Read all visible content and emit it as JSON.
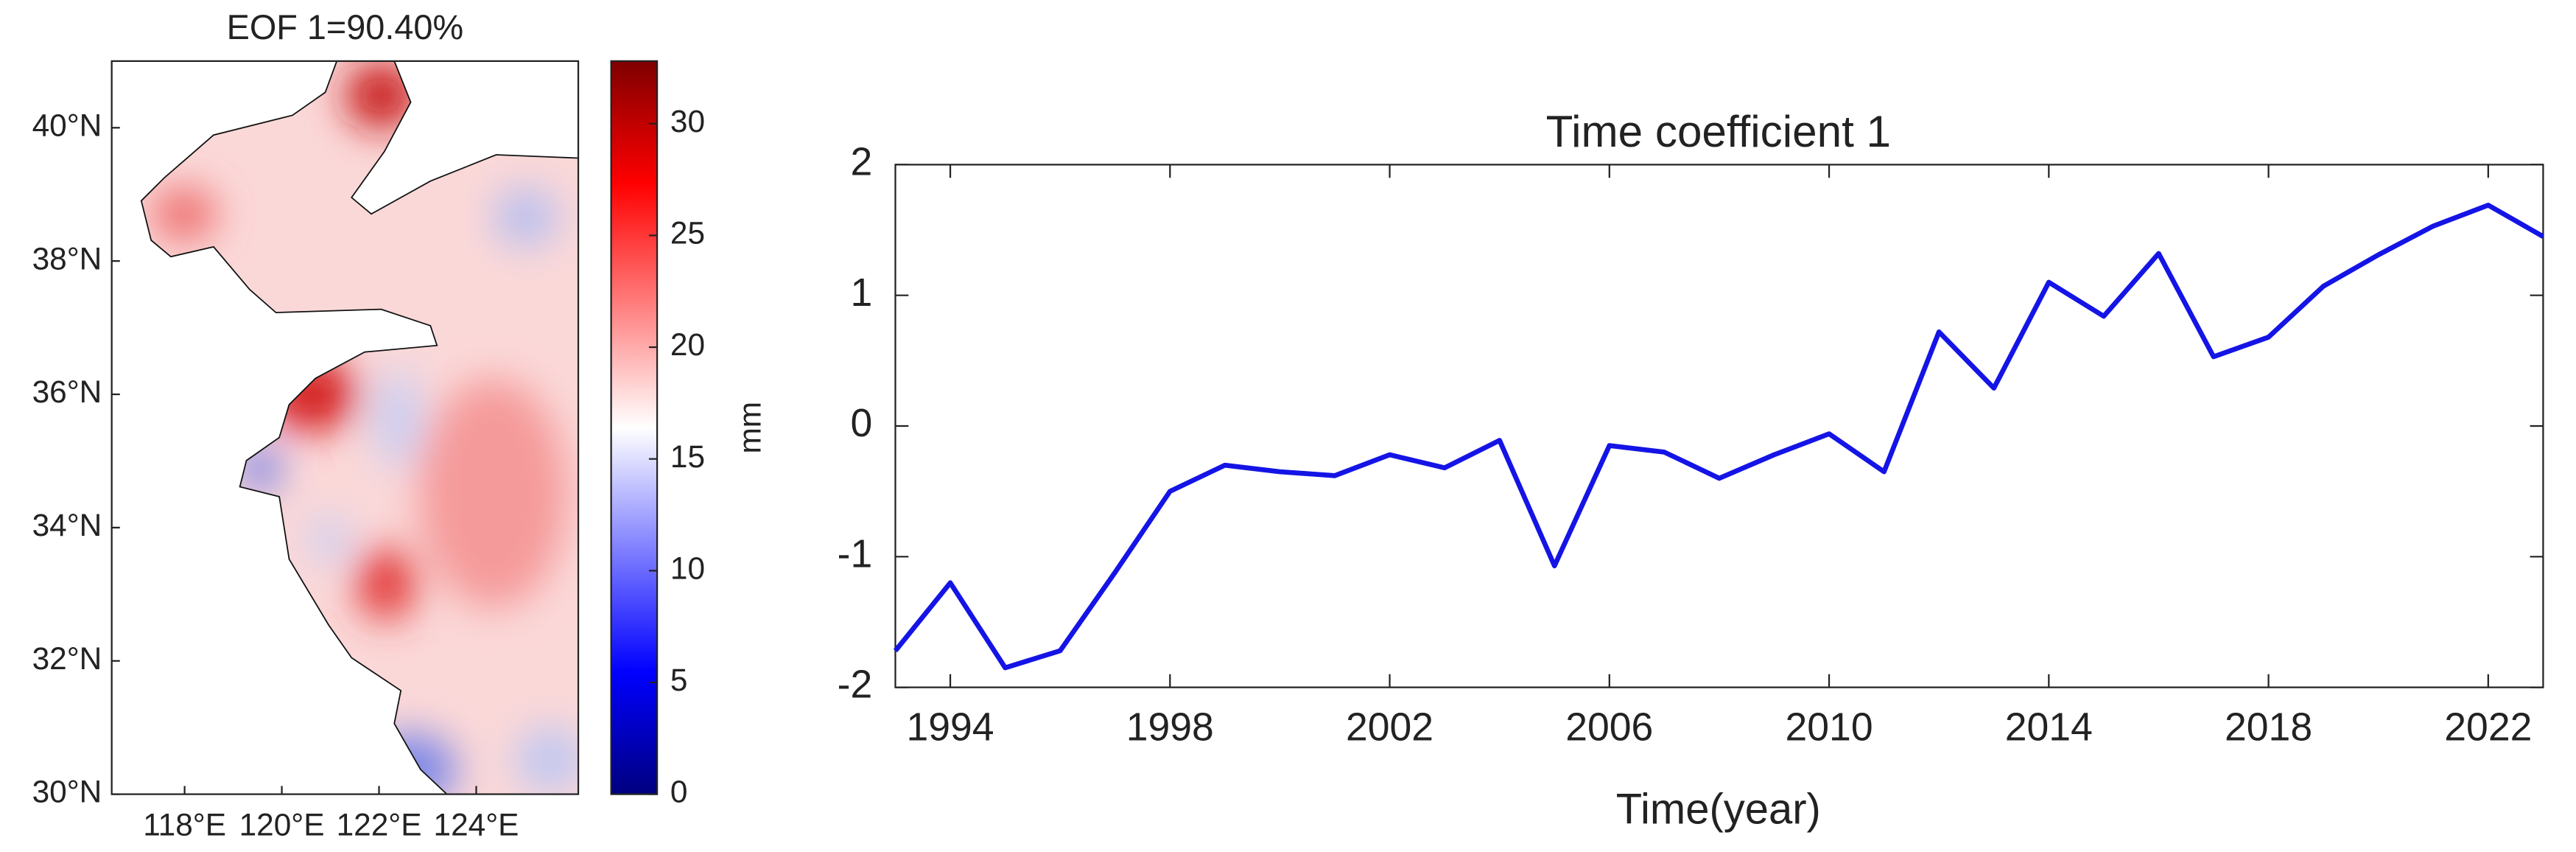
{
  "chart_data": [
    {
      "type": "map",
      "title": "EOF 1=90.40%",
      "xlim": [
        116.5,
        126.1
      ],
      "xticks": [
        {
          "value": 118,
          "label": "118°E"
        },
        {
          "value": 120,
          "label": "120°E"
        },
        {
          "value": 122,
          "label": "122°E"
        },
        {
          "value": 124,
          "label": "124°E"
        }
      ],
      "ylim": [
        30,
        41
      ],
      "yticks": [
        {
          "value": 30,
          "label": "30°N"
        },
        {
          "value": 32,
          "label": "32°N"
        },
        {
          "value": 34,
          "label": "34°N"
        },
        {
          "value": 36,
          "label": "36°N"
        },
        {
          "value": 38,
          "label": "38°N"
        },
        {
          "value": 40,
          "label": "40°N"
        }
      ],
      "colorbar": {
        "label": "mm",
        "clim": [
          0,
          32.8
        ],
        "ticks": [
          0,
          5,
          10,
          15,
          20,
          25,
          30
        ],
        "colormap": [
          "#00007f",
          "#0000ff",
          "#7f7fff",
          "#ffffff",
          "#ff7f7f",
          "#ff0000",
          "#7f0000"
        ]
      }
    },
    {
      "type": "line",
      "title": "Time coefficient 1",
      "xlabel": "Time(year)",
      "x": [
        1993,
        1994,
        1995,
        1996,
        1997,
        1998,
        1999,
        2000,
        2001,
        2002,
        2003,
        2004,
        2005,
        2006,
        2007,
        2008,
        2009,
        2010,
        2011,
        2012,
        2013,
        2014,
        2015,
        2016,
        2017,
        2018,
        2019,
        2020,
        2021,
        2022,
        2023
      ],
      "values": [
        -1.72,
        -1.2,
        -1.85,
        -1.72,
        -1.12,
        -0.5,
        -0.3,
        -0.35,
        -0.38,
        -0.22,
        -0.32,
        -0.11,
        -1.07,
        -0.15,
        -0.2,
        -0.4,
        -0.22,
        -0.06,
        -0.35,
        0.72,
        0.29,
        1.1,
        0.84,
        1.32,
        0.53,
        0.68,
        1.07,
        1.31,
        1.53,
        1.69,
        1.45
      ],
      "color": "#1414e6",
      "xlim": [
        1993,
        2023
      ],
      "xticks": [
        1994,
        1998,
        2002,
        2006,
        2010,
        2014,
        2018,
        2022
      ],
      "ylim": [
        -2,
        2
      ],
      "yticks": [
        -2,
        -1,
        0,
        1,
        2
      ]
    }
  ]
}
